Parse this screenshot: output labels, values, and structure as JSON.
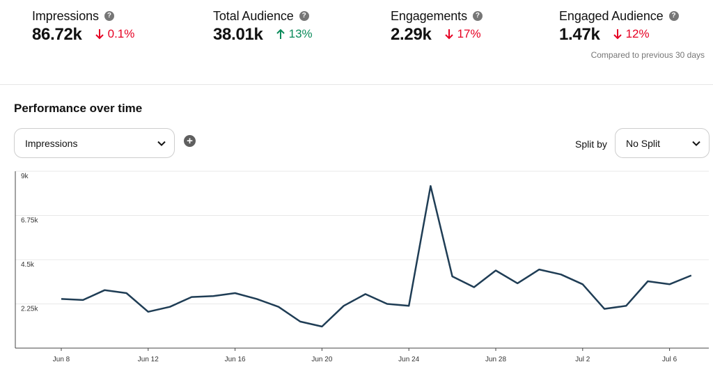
{
  "metrics": [
    {
      "label": "Impressions",
      "value": "86.72k",
      "delta": "0.1%",
      "direction": "down"
    },
    {
      "label": "Total Audience",
      "value": "38.01k",
      "delta": "13%",
      "direction": "up"
    },
    {
      "label": "Engagements",
      "value": "2.29k",
      "delta": "17%",
      "direction": "down"
    },
    {
      "label": "Engaged Audience",
      "value": "1.47k",
      "delta": "12%",
      "direction": "down"
    }
  ],
  "compare_text": "Compared to previous 30 days",
  "section_title": "Performance over time",
  "metric_select": {
    "value": "Impressions"
  },
  "split": {
    "label": "Split by",
    "value": "No Split"
  },
  "colors": {
    "line": "#1f3d55",
    "down": "#e60023",
    "up": "#0a8a5a",
    "grid": "#e8e8e8"
  },
  "chart_data": {
    "type": "line",
    "title": "",
    "xlabel": "",
    "ylabel": "",
    "ylim": [
      0,
      9000
    ],
    "y_ticks": [
      {
        "value": 2250,
        "label": "2.25k"
      },
      {
        "value": 4500,
        "label": "4.5k"
      },
      {
        "value": 6750,
        "label": "6.75k"
      },
      {
        "value": 9000,
        "label": "9k"
      }
    ],
    "x_ticks": [
      "Jun 8",
      "Jun 12",
      "Jun 16",
      "Jun 20",
      "Jun 24",
      "Jun 28",
      "Jul 2",
      "Jul 6"
    ],
    "x": [
      "Jun 8",
      "Jun 9",
      "Jun 10",
      "Jun 11",
      "Jun 12",
      "Jun 13",
      "Jun 14",
      "Jun 15",
      "Jun 16",
      "Jun 17",
      "Jun 18",
      "Jun 19",
      "Jun 20",
      "Jun 21",
      "Jun 22",
      "Jun 23",
      "Jun 24",
      "Jun 25",
      "Jun 26",
      "Jun 27",
      "Jun 28",
      "Jun 29",
      "Jun 30",
      "Jul 1",
      "Jul 2",
      "Jul 3",
      "Jul 4",
      "Jul 5",
      "Jul 6",
      "Jul 7"
    ],
    "series": [
      {
        "values": [
          2500,
          2450,
          2950,
          2800,
          1850,
          2100,
          2600,
          2650,
          2800,
          2500,
          2100,
          1350,
          1100,
          2150,
          2750,
          2250,
          2150,
          8250,
          3650,
          3100,
          3950,
          3300,
          4000,
          3750,
          3250,
          2000,
          2150,
          3400,
          3250,
          3700
        ]
      }
    ],
    "grid": true,
    "legend": "none"
  }
}
